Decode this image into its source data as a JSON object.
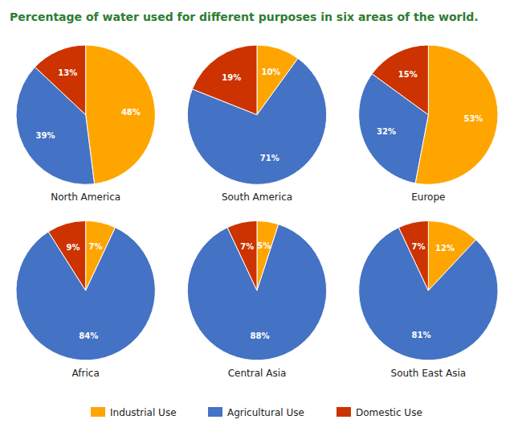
{
  "chart_data": {
    "type": "pie",
    "title": "Percentage of water used for different purposes in six areas of the world.",
    "categories": [
      "Industrial Use",
      "Agricultural Use",
      "Domestic Use"
    ],
    "colors": [
      "#FFA500",
      "#4472C4",
      "#CC3300"
    ],
    "series": [
      {
        "name": "North America",
        "values": [
          48,
          39,
          13
        ],
        "value_labels": [
          "48%",
          "39%",
          "13%"
        ]
      },
      {
        "name": "South America",
        "values": [
          10,
          71,
          19
        ],
        "value_labels": [
          "10%",
          "71%",
          "19%"
        ]
      },
      {
        "name": "Europe",
        "values": [
          53,
          32,
          15
        ],
        "value_labels": [
          "53%",
          "32%",
          "15%"
        ]
      },
      {
        "name": "Africa",
        "values": [
          7,
          84,
          9
        ],
        "value_labels": [
          "7%",
          "84%",
          "9%"
        ]
      },
      {
        "name": "Central Asia",
        "values": [
          5,
          88,
          7
        ],
        "value_labels": [
          "5%",
          "88%",
          "7%"
        ]
      },
      {
        "name": "South East Asia",
        "values": [
          12,
          81,
          7
        ],
        "value_labels": [
          "12%",
          "81%",
          "7%"
        ]
      }
    ],
    "data_labels": true,
    "legend": "bottom"
  }
}
